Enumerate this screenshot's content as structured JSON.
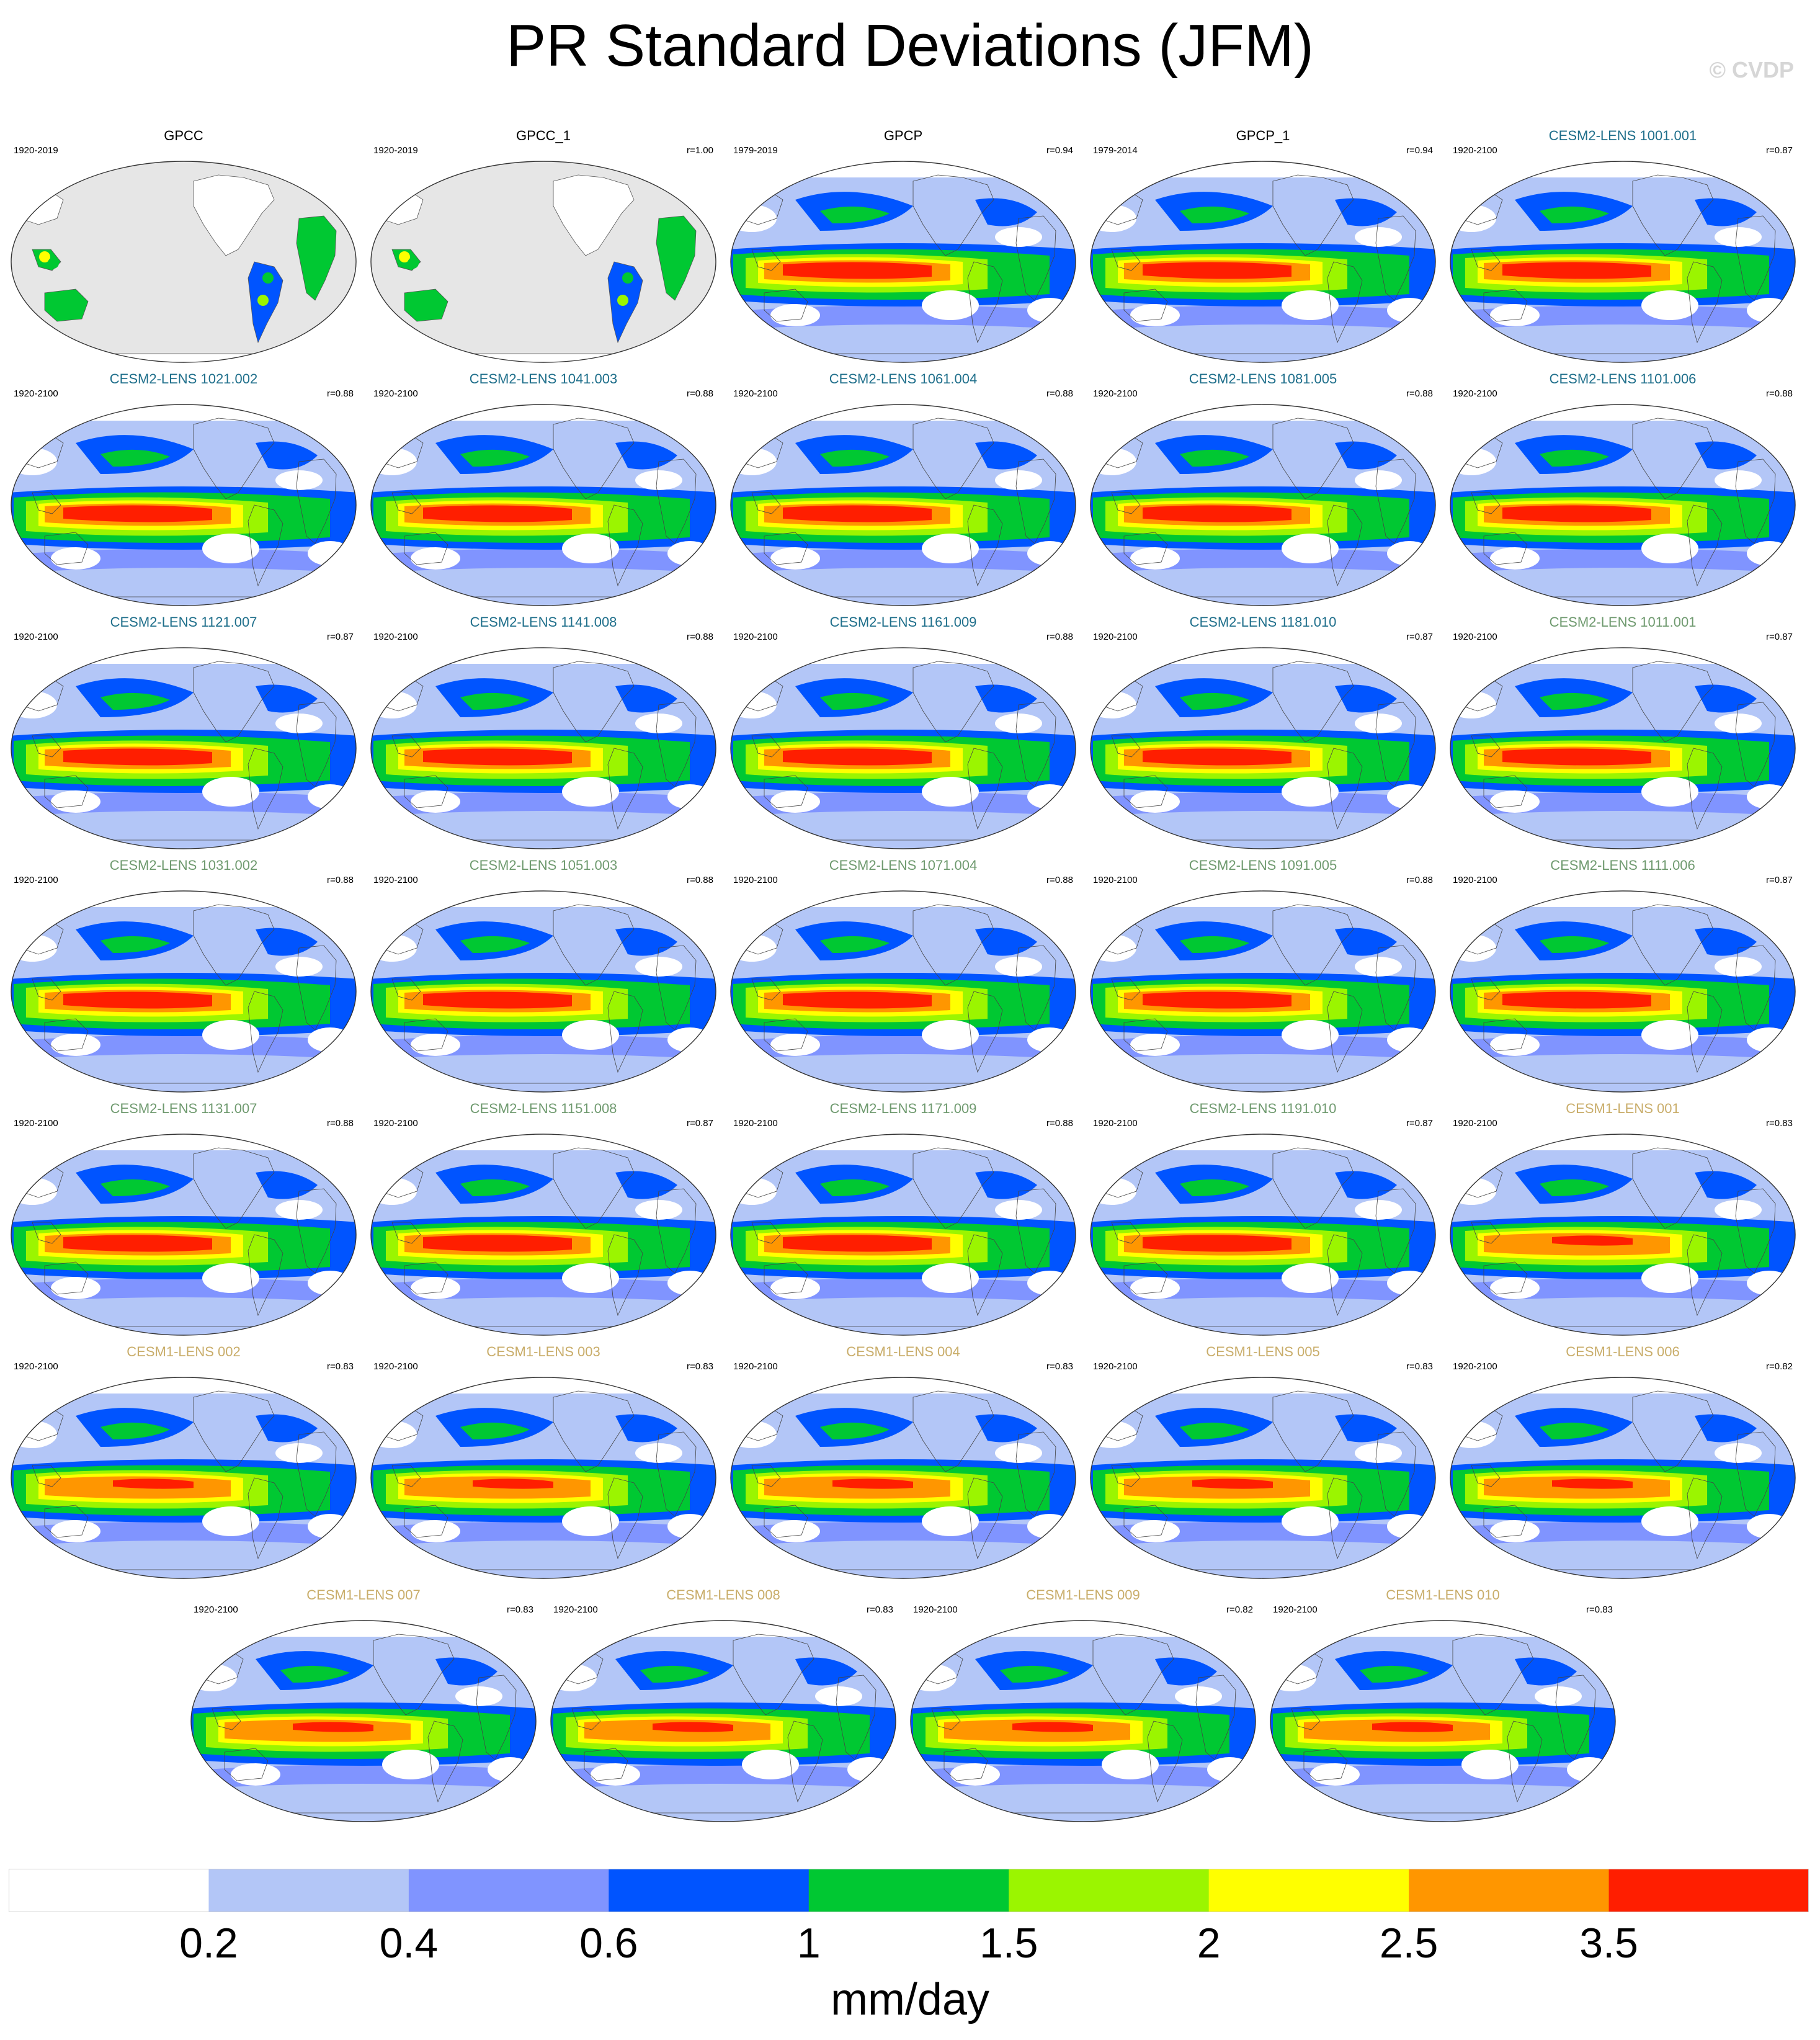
{
  "title": "PR Standard Deviations (JFM)",
  "watermark": "© CVDP",
  "chart_data": {
    "type": "heatmap",
    "title": "PR Standard Deviations (JFM)",
    "projection": "robinson",
    "units": "mm/day",
    "colorbar": {
      "levels": [
        0.2,
        0.4,
        0.6,
        1,
        1.5,
        2,
        2.5,
        3.5
      ],
      "tick_labels": [
        "0.2",
        "0.4",
        "0.6",
        "1",
        "1.5",
        "2",
        "2.5",
        "3.5"
      ],
      "colors": [
        "#ffffff",
        "#b3c6f7",
        "#8094ff",
        "#0054ff",
        "#00c832",
        "#9bf500",
        "#ffff00",
        "#ff9600",
        "#ff1e00"
      ],
      "placement": "bottom"
    },
    "land_fill": "#e6e6e6",
    "panels": [
      {
        "title": "GPCC",
        "years": "1920-2019",
        "r": "",
        "group": "obs_gpcc"
      },
      {
        "title": "GPCC_1",
        "years": "1920-2019",
        "r": "r=1.00",
        "group": "obs_gpcc"
      },
      {
        "title": "GPCP",
        "years": "1979-2019",
        "r": "r=0.94",
        "group": "obs"
      },
      {
        "title": "GPCP_1",
        "years": "1979-2014",
        "r": "r=0.94",
        "group": "obs"
      },
      {
        "title": "CESM2-LENS 1001.001",
        "years": "1920-2100",
        "r": "r=0.87",
        "group": "cesm2a"
      },
      {
        "title": "CESM2-LENS 1021.002",
        "years": "1920-2100",
        "r": "r=0.88",
        "group": "cesm2a"
      },
      {
        "title": "CESM2-LENS 1041.003",
        "years": "1920-2100",
        "r": "r=0.88",
        "group": "cesm2a"
      },
      {
        "title": "CESM2-LENS 1061.004",
        "years": "1920-2100",
        "r": "r=0.88",
        "group": "cesm2a"
      },
      {
        "title": "CESM2-LENS 1081.005",
        "years": "1920-2100",
        "r": "r=0.88",
        "group": "cesm2a"
      },
      {
        "title": "CESM2-LENS 1101.006",
        "years": "1920-2100",
        "r": "r=0.88",
        "group": "cesm2a"
      },
      {
        "title": "CESM2-LENS 1121.007",
        "years": "1920-2100",
        "r": "r=0.87",
        "group": "cesm2a"
      },
      {
        "title": "CESM2-LENS 1141.008",
        "years": "1920-2100",
        "r": "r=0.88",
        "group": "cesm2a"
      },
      {
        "title": "CESM2-LENS 1161.009",
        "years": "1920-2100",
        "r": "r=0.88",
        "group": "cesm2a"
      },
      {
        "title": "CESM2-LENS 1181.010",
        "years": "1920-2100",
        "r": "r=0.87",
        "group": "cesm2a"
      },
      {
        "title": "CESM2-LENS 1011.001",
        "years": "1920-2100",
        "r": "r=0.87",
        "group": "cesm2b"
      },
      {
        "title": "CESM2-LENS 1031.002",
        "years": "1920-2100",
        "r": "r=0.88",
        "group": "cesm2b"
      },
      {
        "title": "CESM2-LENS 1051.003",
        "years": "1920-2100",
        "r": "r=0.88",
        "group": "cesm2b"
      },
      {
        "title": "CESM2-LENS 1071.004",
        "years": "1920-2100",
        "r": "r=0.88",
        "group": "cesm2b"
      },
      {
        "title": "CESM2-LENS 1091.005",
        "years": "1920-2100",
        "r": "r=0.88",
        "group": "cesm2b"
      },
      {
        "title": "CESM2-LENS 1111.006",
        "years": "1920-2100",
        "r": "r=0.87",
        "group": "cesm2b"
      },
      {
        "title": "CESM2-LENS 1131.007",
        "years": "1920-2100",
        "r": "r=0.88",
        "group": "cesm2b"
      },
      {
        "title": "CESM2-LENS 1151.008",
        "years": "1920-2100",
        "r": "r=0.87",
        "group": "cesm2b"
      },
      {
        "title": "CESM2-LENS 1171.009",
        "years": "1920-2100",
        "r": "r=0.88",
        "group": "cesm2b"
      },
      {
        "title": "CESM2-LENS 1191.010",
        "years": "1920-2100",
        "r": "r=0.87",
        "group": "cesm2b"
      },
      {
        "title": "CESM1-LENS 001",
        "years": "1920-2100",
        "r": "r=0.83",
        "group": "cesm1"
      },
      {
        "title": "CESM1-LENS 002",
        "years": "1920-2100",
        "r": "r=0.83",
        "group": "cesm1"
      },
      {
        "title": "CESM1-LENS 003",
        "years": "1920-2100",
        "r": "r=0.83",
        "group": "cesm1"
      },
      {
        "title": "CESM1-LENS 004",
        "years": "1920-2100",
        "r": "r=0.83",
        "group": "cesm1"
      },
      {
        "title": "CESM1-LENS 005",
        "years": "1920-2100",
        "r": "r=0.83",
        "group": "cesm1"
      },
      {
        "title": "CESM1-LENS 006",
        "years": "1920-2100",
        "r": "r=0.82",
        "group": "cesm1"
      },
      {
        "title": "CESM1-LENS 007",
        "years": "1920-2100",
        "r": "r=0.83",
        "group": "cesm1"
      },
      {
        "title": "CESM1-LENS 008",
        "years": "1920-2100",
        "r": "r=0.83",
        "group": "cesm1"
      },
      {
        "title": "CESM1-LENS 009",
        "years": "1920-2100",
        "r": "r=0.82",
        "group": "cesm1"
      },
      {
        "title": "CESM1-LENS 010",
        "years": "1920-2100",
        "r": "r=0.83",
        "group": "cesm1"
      }
    ],
    "group_title_colors": {
      "obs_gpcc": "#000000",
      "obs": "#000000",
      "cesm2a": "#1f6f8b",
      "cesm2b": "#6f9a6f",
      "cesm1": "#c9ad6a"
    }
  }
}
